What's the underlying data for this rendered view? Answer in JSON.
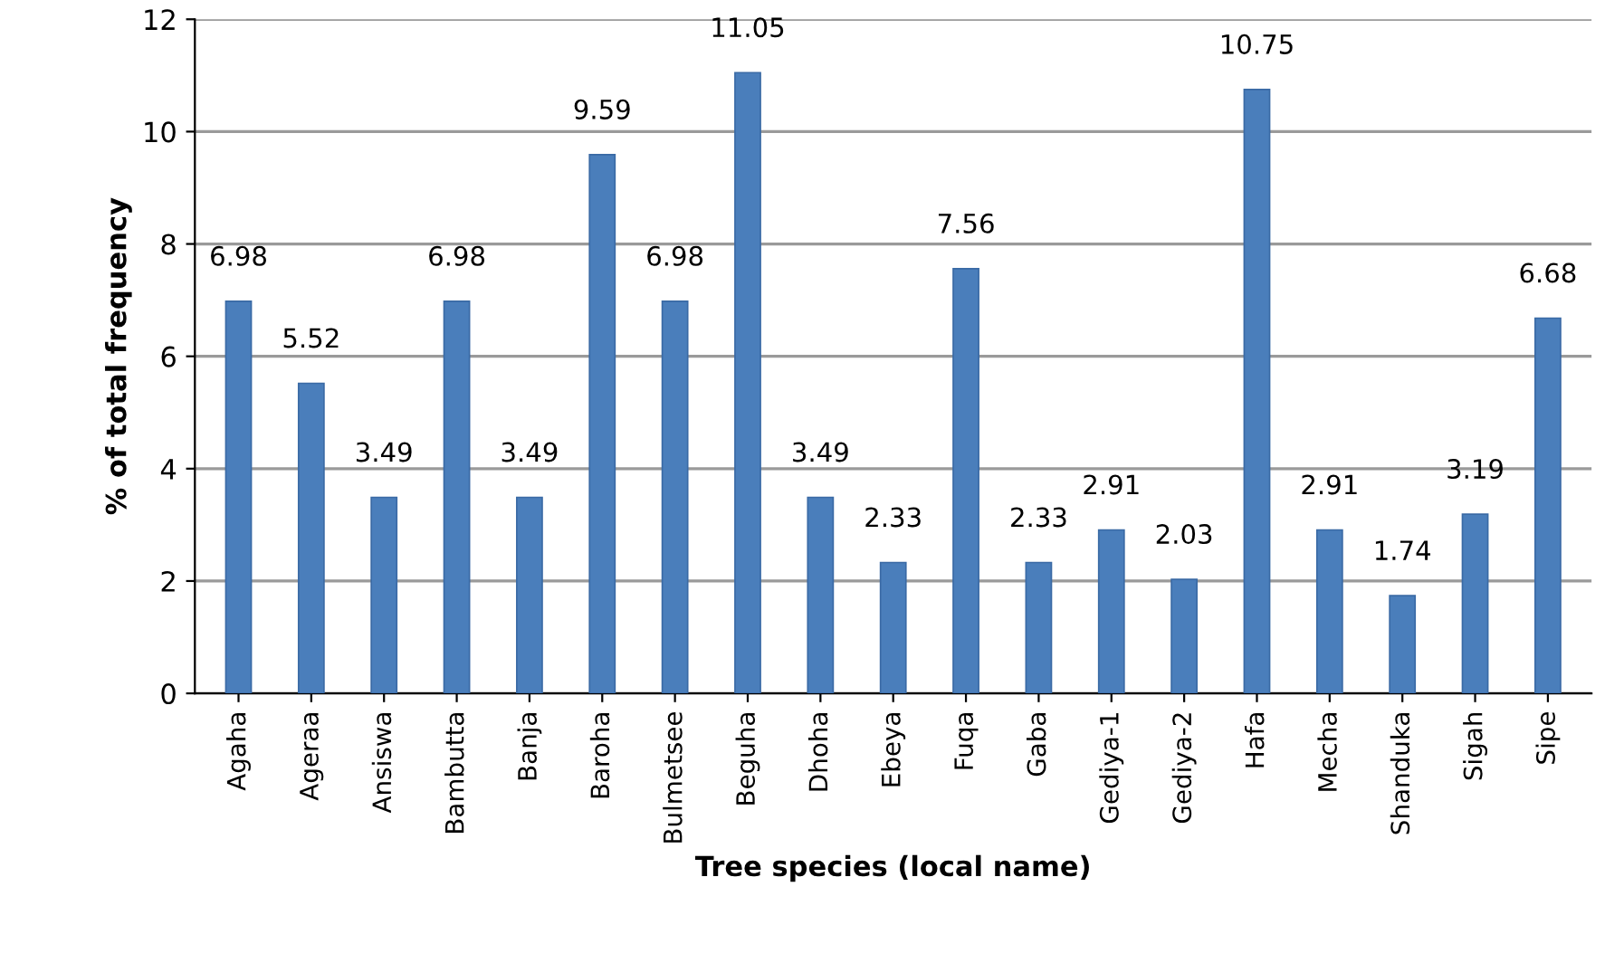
{
  "chart_data": {
    "type": "bar",
    "xlabel": "Tree species (local name)",
    "ylabel": "% of total frequency",
    "categories": [
      "Agaha",
      "Ageraa",
      "Ansiswa",
      "Bambutta",
      "Banja",
      "Baroha",
      "Bulmetsee",
      "Beguha",
      "Dhoha",
      "Ebeya",
      "Fuqa",
      "Gaba",
      "Gediya-1",
      "Gediya-2",
      "Hafa",
      "Mecha",
      "Shanduka",
      "Sigah",
      "Sipe"
    ],
    "values": [
      6.98,
      5.52,
      3.49,
      6.98,
      3.49,
      9.59,
      6.98,
      11.05,
      3.49,
      2.33,
      7.56,
      2.33,
      2.91,
      2.03,
      10.75,
      2.91,
      1.74,
      3.19,
      6.68
    ],
    "color": "#4a7ebb",
    "ylim": [
      0,
      12
    ],
    "yticks": [
      0,
      2,
      4,
      6,
      8,
      10,
      12
    ],
    "grid": "y",
    "data_labels": true
  }
}
